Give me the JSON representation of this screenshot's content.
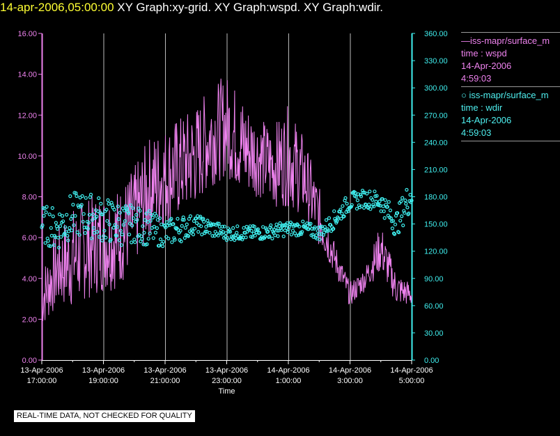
{
  "header": {
    "timestamp": "14-apr-2006,05:00:00",
    "title_rest": " XY Graph:xy-grid.  XY Graph:wspd.  XY Graph:wdir."
  },
  "legend": {
    "wspd": {
      "line": "—iss-mapr/surface_m",
      "field": "time : wspd",
      "date": "14-Apr-2006",
      "time": "4:59:03"
    },
    "wdir": {
      "line": "○ iss-mapr/surface_m",
      "field": "time : wdir",
      "date": "14-Apr-2006",
      "time": "4:59:03"
    }
  },
  "notice": "REAL-TIME DATA, NOT CHECKED FOR QUALITY",
  "colors": {
    "wspd": "#ee82ee",
    "wdir": "#40f0f0",
    "grid": "#bbbbbb",
    "axis_text": "#ffffff"
  },
  "chart_data": {
    "type": "line",
    "xlabel": "Time",
    "x_ticks": [
      {
        "t": 0,
        "line1": "13-Apr-2006",
        "line2": "17:00:00"
      },
      {
        "t": 2,
        "line1": "13-Apr-2006",
        "line2": "19:00:00"
      },
      {
        "t": 4,
        "line1": "13-Apr-2006",
        "line2": "21:00:00"
      },
      {
        "t": 6,
        "line1": "13-Apr-2006",
        "line2": "23:00:00"
      },
      {
        "t": 8,
        "line1": "14-Apr-2006",
        "line2": "1:00:00"
      },
      {
        "t": 10,
        "line1": "14-Apr-2006",
        "line2": "3:00:00"
      },
      {
        "t": 12,
        "line1": "14-Apr-2006",
        "line2": "5:00:00"
      }
    ],
    "xlim": [
      "13-Apr-2006 17:00:00",
      "14-Apr-2006 05:00:00"
    ],
    "left_axis": {
      "series": "wspd",
      "ylim": [
        0,
        16
      ],
      "ticks": [
        "0.00",
        "2.00",
        "4.00",
        "6.00",
        "8.00",
        "10.00",
        "12.00",
        "14.00",
        "16.00"
      ]
    },
    "right_axis": {
      "series": "wdir",
      "ylim": [
        0,
        360
      ],
      "ticks": [
        "0.00",
        "30.00",
        "60.00",
        "90.00",
        "120.00",
        "150.00",
        "180.00",
        "210.00",
        "240.00",
        "270.00",
        "300.00",
        "330.00",
        "360.00"
      ]
    },
    "grid": "vertical",
    "series": [
      {
        "key": "wspd",
        "style": "line",
        "axis": "left",
        "time": [
          "13-Apr-2006 17:00",
          "13-Apr-2006 17:30",
          "13-Apr-2006 18:00",
          "13-Apr-2006 18:30",
          "13-Apr-2006 19:00",
          "13-Apr-2006 19:30",
          "13-Apr-2006 20:00",
          "13-Apr-2006 20:30",
          "13-Apr-2006 21:00",
          "13-Apr-2006 21:30",
          "13-Apr-2006 22:00",
          "13-Apr-2006 22:30",
          "13-Apr-2006 23:00",
          "13-Apr-2006 23:30",
          "14-Apr-2006 00:00",
          "14-Apr-2006 00:30",
          "14-Apr-2006 01:00",
          "14-Apr-2006 01:30",
          "14-Apr-2006 02:00",
          "14-Apr-2006 02:30",
          "14-Apr-2006 03:00",
          "14-Apr-2006 03:30",
          "14-Apr-2006 04:00",
          "14-Apr-2006 04:30",
          "14-Apr-2006 05:00"
        ],
        "values": [
          3.0,
          4.5,
          5.0,
          5.5,
          5.8,
          6.0,
          7.0,
          8.5,
          9.0,
          9.5,
          10.0,
          11.0,
          11.5,
          10.5,
          10.0,
          9.5,
          10.0,
          9.0,
          7.0,
          5.0,
          3.2,
          4.0,
          5.5,
          3.5,
          3.2
        ],
        "noise": [
          1.5,
          2.0,
          2.5,
          2.5,
          2.5,
          2.5,
          2.5,
          2.5,
          2.5,
          2.5,
          2.5,
          2.5,
          2.5,
          2.5,
          2.0,
          2.0,
          2.5,
          2.0,
          1.5,
          0.8,
          0.6,
          0.6,
          1.2,
          0.8,
          0.6
        ]
      },
      {
        "key": "wdir",
        "style": "scatter",
        "axis": "right",
        "time": [
          "13-Apr-2006 17:00",
          "13-Apr-2006 17:30",
          "13-Apr-2006 18:00",
          "13-Apr-2006 18:30",
          "13-Apr-2006 19:00",
          "13-Apr-2006 19:30",
          "13-Apr-2006 20:00",
          "13-Apr-2006 20:30",
          "13-Apr-2006 21:00",
          "13-Apr-2006 21:30",
          "13-Apr-2006 22:00",
          "13-Apr-2006 22:30",
          "13-Apr-2006 23:00",
          "13-Apr-2006 23:30",
          "14-Apr-2006 00:00",
          "14-Apr-2006 00:30",
          "14-Apr-2006 01:00",
          "14-Apr-2006 01:30",
          "14-Apr-2006 02:00",
          "14-Apr-2006 02:30",
          "14-Apr-2006 03:00",
          "14-Apr-2006 03:30",
          "14-Apr-2006 04:00",
          "14-Apr-2006 04:30",
          "14-Apr-2006 05:00"
        ],
        "values": [
          150,
          145,
          160,
          160,
          155,
          150,
          150,
          145,
          140,
          145,
          150,
          145,
          140,
          140,
          140,
          142,
          145,
          145,
          140,
          155,
          175,
          178,
          175,
          150,
          185
        ],
        "noise": [
          20,
          25,
          25,
          25,
          25,
          25,
          20,
          20,
          15,
          15,
          10,
          10,
          8,
          8,
          8,
          8,
          8,
          8,
          8,
          10,
          10,
          10,
          12,
          15,
          20
        ]
      }
    ]
  }
}
